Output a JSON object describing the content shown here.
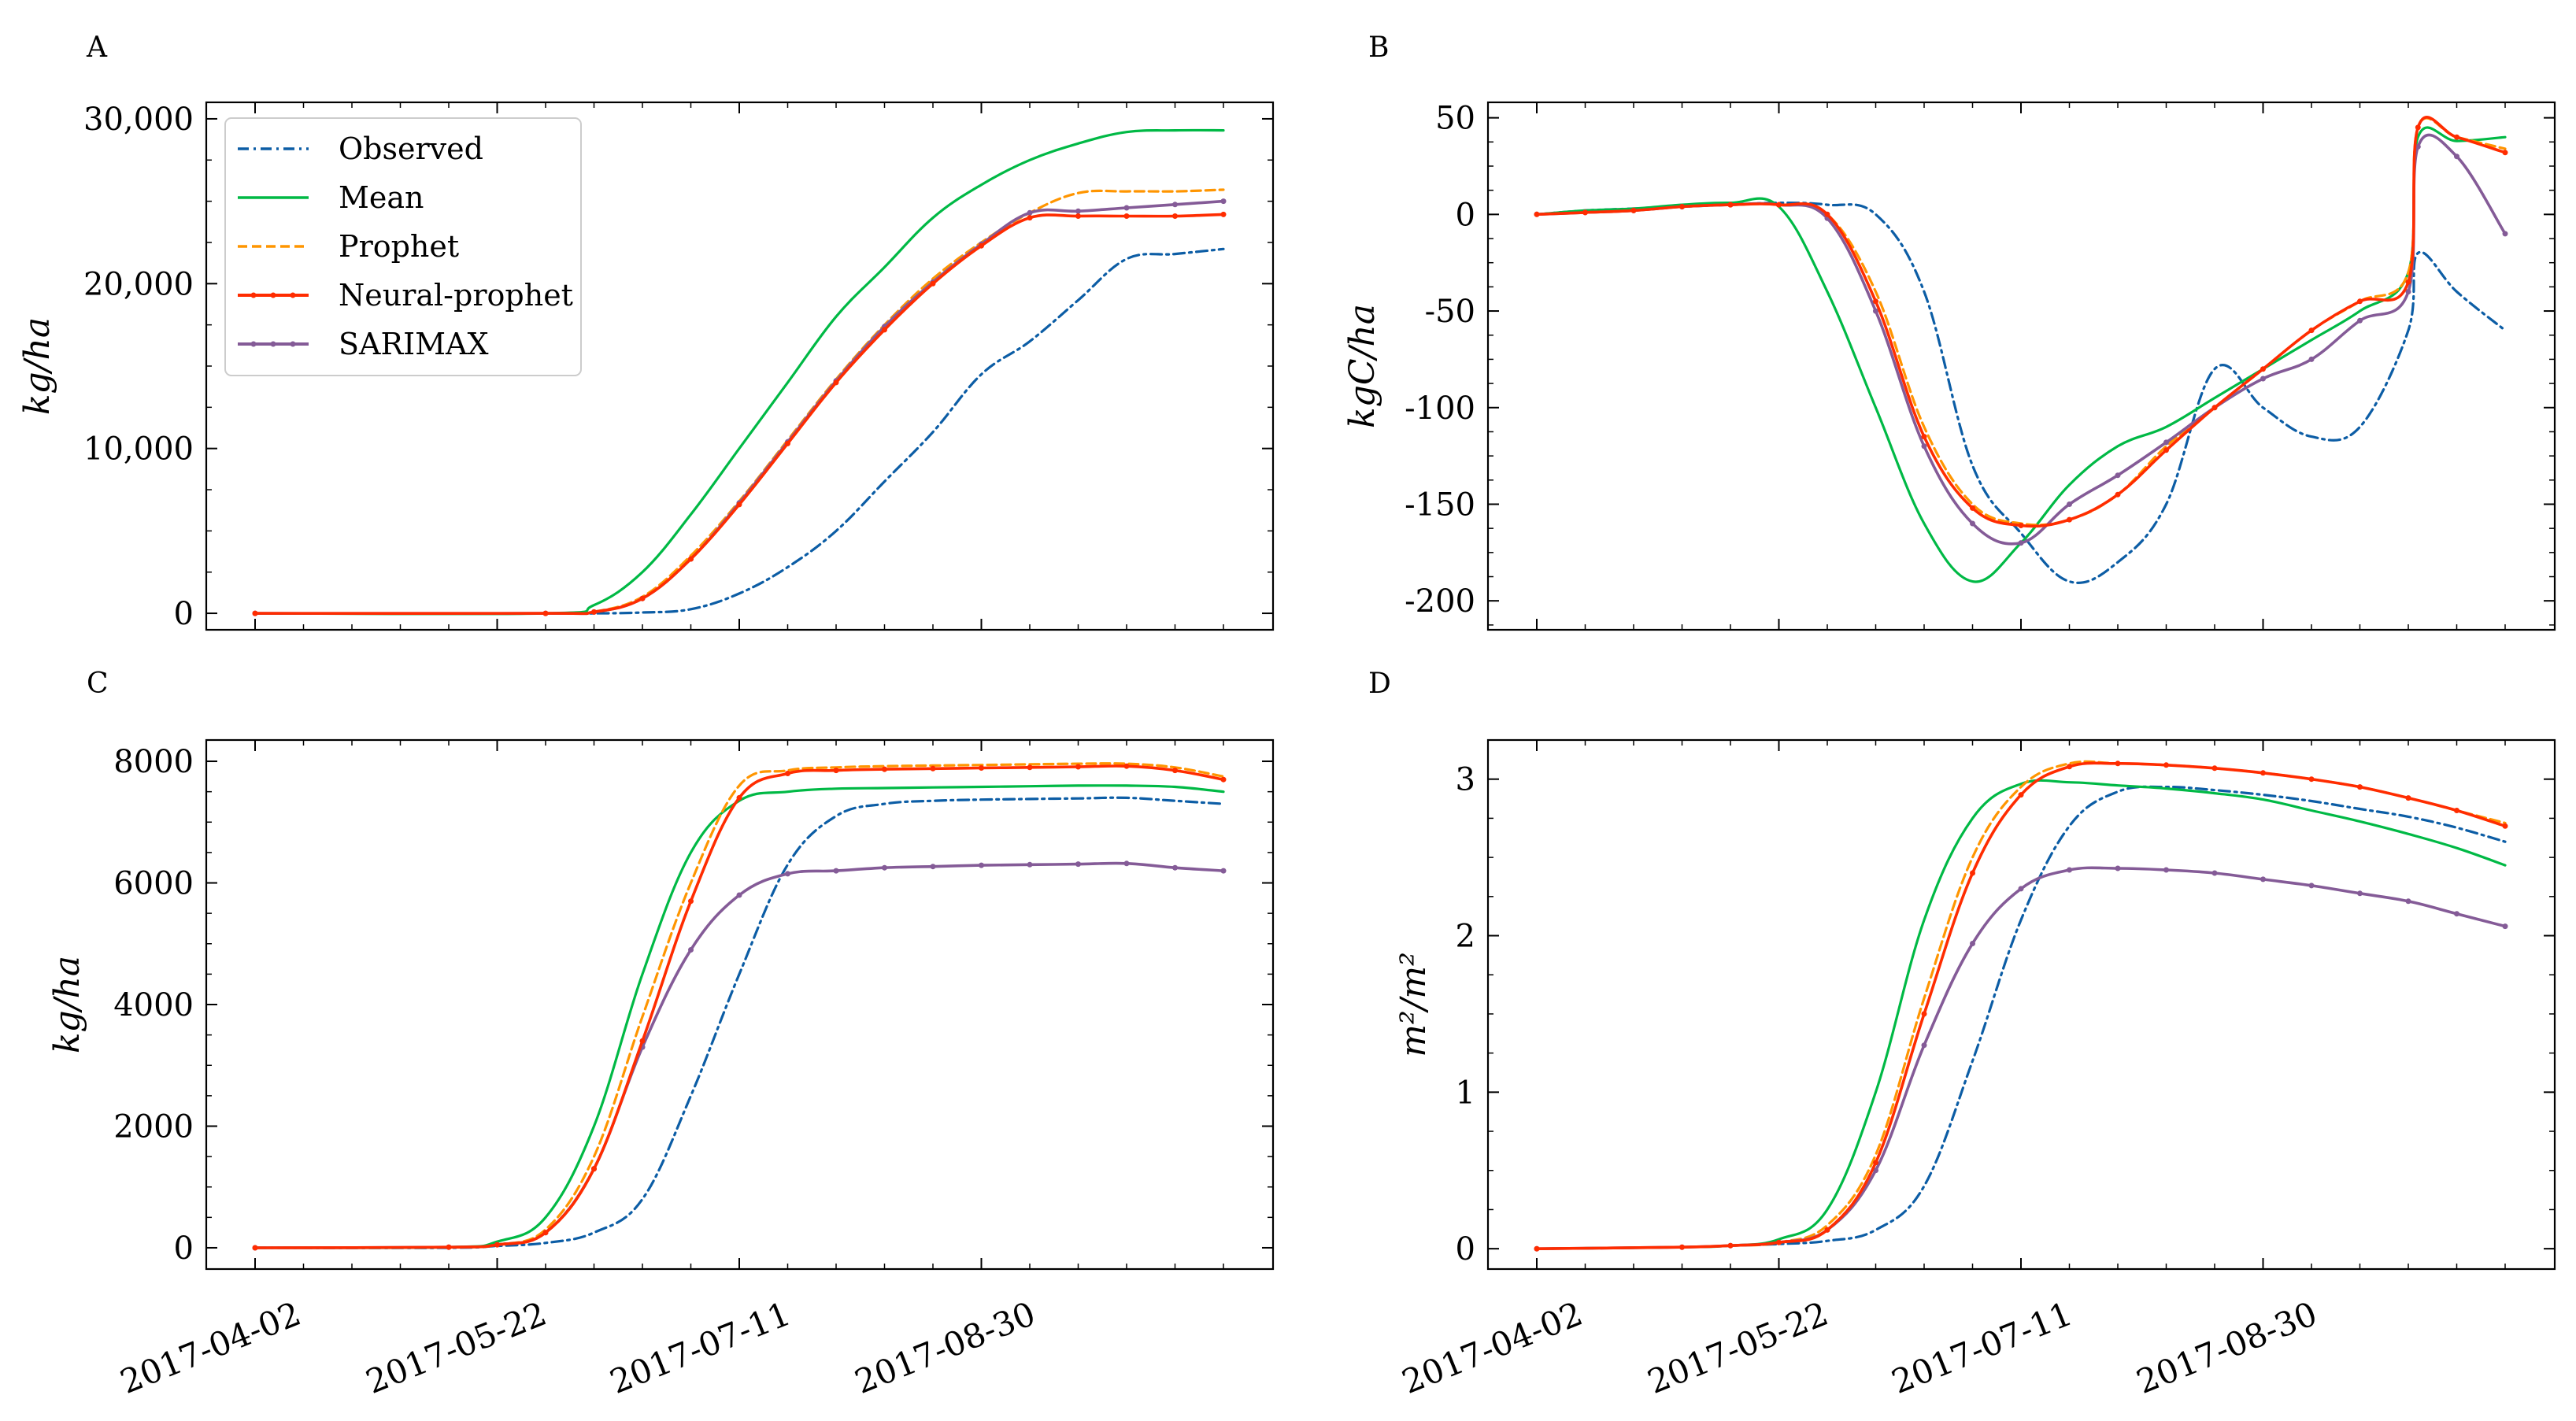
{
  "colors": {
    "observed": "#0c5da5",
    "mean": "#00b945",
    "prophet": "#ff9500",
    "neural_prophet": "#ff2c00",
    "sarimax": "#845b97"
  },
  "legend": {
    "entries": [
      {
        "name": "Observed",
        "key": "observed"
      },
      {
        "name": "Mean",
        "key": "mean"
      },
      {
        "name": "Prophet",
        "key": "prophet"
      },
      {
        "name": "Neural-prophet",
        "key": "neural_prophet"
      },
      {
        "name": "SARIMAX",
        "key": "sarimax"
      }
    ]
  },
  "x_ticks": [
    "2017-04-02",
    "2017-05-22",
    "2017-07-11",
    "2017-08-30"
  ],
  "chart_data": [
    {
      "panel": "A",
      "type": "line",
      "ylabel": "kg/ha",
      "ylim": [
        -1000,
        31000
      ],
      "yticks": [
        0,
        10000,
        20000,
        30000
      ],
      "ytick_labels": [
        "0",
        "10,000",
        "20,000",
        "30,000"
      ],
      "x_days": [
        0,
        60,
        70,
        80,
        90,
        100,
        110,
        120,
        130,
        140,
        150,
        160,
        170,
        180,
        190,
        200
      ],
      "series": [
        {
          "name": "Observed",
          "key": "observed",
          "values": [
            0,
            0,
            0,
            50,
            250,
            1200,
            2800,
            5000,
            8000,
            11000,
            14500,
            16500,
            19000,
            21500,
            21800,
            22100
          ]
        },
        {
          "name": "Mean",
          "key": "mean",
          "values": [
            0,
            0,
            500,
            2500,
            6000,
            10000,
            14000,
            18000,
            21000,
            24000,
            26000,
            27500,
            28500,
            29200,
            29300,
            29300
          ]
        },
        {
          "name": "Prophet",
          "key": "prophet",
          "values": [
            0,
            0,
            100,
            1000,
            3500,
            6800,
            10500,
            14200,
            17500,
            20300,
            22500,
            24300,
            25500,
            25600,
            25600,
            25700
          ]
        },
        {
          "name": "Neural-prophet",
          "key": "neural_prophet",
          "values": [
            0,
            0,
            80,
            900,
            3300,
            6600,
            10300,
            14000,
            17200,
            20000,
            22300,
            24000,
            24100,
            24100,
            24100,
            24200
          ]
        },
        {
          "name": "SARIMAX",
          "key": "sarimax",
          "values": [
            0,
            0,
            80,
            900,
            3300,
            6700,
            10400,
            14100,
            17400,
            20100,
            22400,
            24300,
            24400,
            24600,
            24800,
            25000
          ]
        }
      ]
    },
    {
      "panel": "B",
      "type": "line",
      "ylabel": "kgC/ha",
      "ylim": [
        -215,
        58
      ],
      "yticks": [
        -200,
        -150,
        -100,
        -50,
        0,
        50
      ],
      "ytick_labels": [
        "-200",
        "-150",
        "-100",
        "-50",
        "0",
        "50"
      ],
      "x_days": [
        0,
        10,
        20,
        30,
        40,
        50,
        60,
        70,
        80,
        90,
        100,
        110,
        120,
        130,
        140,
        150,
        160,
        170,
        180,
        182,
        190,
        200
      ],
      "series": [
        {
          "name": "Observed",
          "key": "observed",
          "values": [
            0,
            2,
            3,
            4,
            5,
            6,
            5,
            0,
            -40,
            -130,
            -165,
            -190,
            -180,
            -150,
            -80,
            -100,
            -115,
            -110,
            -60,
            -20,
            -40,
            -60
          ]
        },
        {
          "name": "Mean",
          "key": "mean",
          "values": [
            0,
            2,
            3,
            5,
            6,
            4,
            -40,
            -100,
            -160,
            -190,
            -170,
            -140,
            -120,
            -110,
            -95,
            -80,
            -65,
            -50,
            -30,
            40,
            38,
            40
          ]
        },
        {
          "name": "Prophet",
          "key": "prophet",
          "values": [
            0,
            1,
            2,
            4,
            5,
            5,
            0,
            -40,
            -110,
            -150,
            -160,
            -158,
            -145,
            -120,
            -100,
            -80,
            -60,
            -45,
            -30,
            45,
            40,
            34
          ]
        },
        {
          "name": "Neural-prophet",
          "key": "neural_prophet",
          "values": [
            0,
            1,
            2,
            4,
            5,
            5,
            0,
            -45,
            -115,
            -152,
            -161,
            -158,
            -145,
            -122,
            -100,
            -80,
            -60,
            -45,
            -35,
            45,
            40,
            32
          ]
        },
        {
          "name": "SARIMAX",
          "key": "sarimax",
          "values": [
            0,
            1,
            2,
            4,
            5,
            5,
            -2,
            -50,
            -120,
            -160,
            -170,
            -150,
            -135,
            -118,
            -100,
            -85,
            -75,
            -55,
            -40,
            35,
            30,
            -10
          ]
        }
      ]
    },
    {
      "panel": "C",
      "type": "line",
      "ylabel": "kg/ha",
      "ylim": [
        -350,
        8350
      ],
      "yticks": [
        0,
        2000,
        4000,
        6000,
        8000
      ],
      "ytick_labels": [
        "0",
        "2000",
        "4000",
        "6000",
        "8000"
      ],
      "x_days": [
        0,
        40,
        50,
        60,
        70,
        80,
        90,
        100,
        110,
        120,
        130,
        140,
        150,
        160,
        170,
        180,
        190,
        200
      ],
      "series": [
        {
          "name": "Observed",
          "key": "observed",
          "values": [
            0,
            0,
            30,
            80,
            250,
            800,
            2500,
            4500,
            6300,
            7100,
            7300,
            7350,
            7370,
            7380,
            7390,
            7400,
            7350,
            7300
          ]
        },
        {
          "name": "Mean",
          "key": "mean",
          "values": [
            0,
            10,
            100,
            500,
            2000,
            4500,
            6500,
            7350,
            7500,
            7550,
            7560,
            7570,
            7580,
            7590,
            7600,
            7600,
            7580,
            7500
          ]
        },
        {
          "name": "Prophet",
          "key": "prophet",
          "values": [
            0,
            10,
            50,
            300,
            1500,
            3800,
            6000,
            7600,
            7850,
            7900,
            7920,
            7930,
            7940,
            7950,
            7960,
            7960,
            7900,
            7750
          ]
        },
        {
          "name": "Neural-prophet",
          "key": "neural_prophet",
          "values": [
            0,
            10,
            50,
            250,
            1300,
            3400,
            5700,
            7400,
            7800,
            7850,
            7870,
            7880,
            7890,
            7900,
            7910,
            7920,
            7850,
            7700
          ]
        },
        {
          "name": "SARIMAX",
          "key": "sarimax",
          "values": [
            0,
            10,
            50,
            250,
            1300,
            3300,
            4900,
            5800,
            6150,
            6200,
            6250,
            6270,
            6290,
            6300,
            6310,
            6320,
            6250,
            6200
          ]
        }
      ]
    },
    {
      "panel": "D",
      "type": "line",
      "ylabel": "m²/m²",
      "ylim": [
        -0.13,
        3.25
      ],
      "yticks": [
        0,
        1,
        2,
        3
      ],
      "ytick_labels": [
        "0",
        "1",
        "2",
        "3"
      ],
      "x_days": [
        0,
        30,
        40,
        50,
        60,
        70,
        80,
        90,
        100,
        110,
        120,
        130,
        140,
        150,
        160,
        170,
        180,
        190,
        200
      ],
      "series": [
        {
          "name": "Observed",
          "key": "observed",
          "values": [
            0,
            0.01,
            0.02,
            0.03,
            0.05,
            0.12,
            0.4,
            1.2,
            2.1,
            2.7,
            2.92,
            2.95,
            2.93,
            2.9,
            2.86,
            2.81,
            2.76,
            2.69,
            2.6
          ]
        },
        {
          "name": "Mean",
          "key": "mean",
          "values": [
            0,
            0.01,
            0.02,
            0.06,
            0.25,
            1.0,
            2.1,
            2.75,
            2.97,
            2.98,
            2.96,
            2.94,
            2.91,
            2.87,
            2.8,
            2.73,
            2.65,
            2.56,
            2.45
          ]
        },
        {
          "name": "Prophet",
          "key": "prophet",
          "values": [
            0,
            0.01,
            0.02,
            0.04,
            0.15,
            0.6,
            1.6,
            2.5,
            2.95,
            3.1,
            3.1,
            3.09,
            3.07,
            3.04,
            3.0,
            2.95,
            2.88,
            2.8,
            2.72
          ]
        },
        {
          "name": "Neural-prophet",
          "key": "neural_prophet",
          "values": [
            0,
            0.01,
            0.02,
            0.04,
            0.12,
            0.55,
            1.5,
            2.4,
            2.9,
            3.08,
            3.1,
            3.09,
            3.07,
            3.04,
            3.0,
            2.95,
            2.88,
            2.8,
            2.7
          ]
        },
        {
          "name": "SARIMAX",
          "key": "sarimax",
          "values": [
            0,
            0.01,
            0.02,
            0.04,
            0.12,
            0.5,
            1.3,
            1.95,
            2.3,
            2.42,
            2.43,
            2.42,
            2.4,
            2.36,
            2.32,
            2.27,
            2.22,
            2.14,
            2.06
          ]
        }
      ]
    }
  ]
}
